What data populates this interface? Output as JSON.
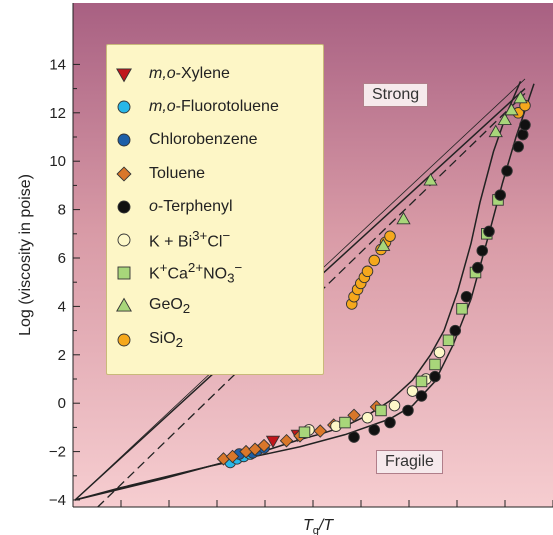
{
  "chart_data": {
    "type": "scatter",
    "title": "",
    "xlabel_main": "T",
    "xlabel_sub": "g",
    "xlabel_tail": "/T",
    "ylabel": "Log (viscosity in poise)",
    "x_range": [
      0,
      1
    ],
    "ylim": [
      -4,
      15.5
    ],
    "y_ticks": [
      "14",
      "12",
      "10",
      "8",
      "6",
      "4",
      "2",
      "0",
      "-2",
      "-4"
    ],
    "annotations": {
      "strong": "Strong",
      "fragile": "Fragile"
    },
    "legend": [
      {
        "key": "xylene",
        "pre": "",
        "it": "m,o",
        "post": "-Xylene",
        "color": "#c0161c",
        "marker": "triangle-down"
      },
      {
        "key": "fluorotoluene",
        "pre": "",
        "it": "m,o",
        "post": "-Fluorotoluene",
        "color": "#29b7e8",
        "marker": "circle"
      },
      {
        "key": "chlorobenzene",
        "pre": "",
        "it": "",
        "post": "Chlorobenzene",
        "color": "#1d5fa8",
        "marker": "circle"
      },
      {
        "key": "toluene",
        "pre": "",
        "it": "",
        "post": "Toluene",
        "color": "#d9772a",
        "marker": "diamond"
      },
      {
        "key": "terphenyl",
        "pre": "",
        "it": "o",
        "post": "-Terphenyl",
        "color": "#111111",
        "marker": "circle"
      },
      {
        "key": "kbicl",
        "pre": "K + Bi",
        "sup": "3+",
        "post": "Cl",
        "sup2": "−",
        "color": "#fdf8c8",
        "marker": "circle"
      },
      {
        "key": "kcano3",
        "pre": "K",
        "sup": "+",
        "post": "Ca",
        "sup2": "2+",
        "post2": "NO",
        "sub": "3",
        "sup3": "−",
        "color": "#a8d67a",
        "marker": "square"
      },
      {
        "key": "geo2",
        "pre": "GeO",
        "sub": "2",
        "color": "#a8d67a",
        "marker": "triangle-up"
      },
      {
        "key": "sio2",
        "pre": "SiO",
        "sub": "2",
        "color": "#f5a81c",
        "marker": "circle"
      }
    ],
    "series": [
      {
        "key": "sio2",
        "points": [
          [
            0.615,
            4.1
          ],
          [
            0.62,
            4.4
          ],
          [
            0.628,
            4.7
          ],
          [
            0.635,
            4.95
          ],
          [
            0.643,
            5.2
          ],
          [
            0.65,
            5.45
          ],
          [
            0.665,
            5.9
          ],
          [
            0.68,
            6.35
          ],
          [
            0.69,
            6.65
          ],
          [
            0.7,
            6.9
          ],
          [
            0.985,
            12.0
          ],
          [
            1.0,
            12.3
          ]
        ]
      },
      {
        "key": "geo2",
        "points": [
          [
            0.685,
            6.5
          ],
          [
            0.73,
            7.6
          ],
          [
            0.79,
            9.2
          ],
          [
            0.935,
            11.2
          ],
          [
            0.955,
            11.7
          ],
          [
            0.97,
            12.1
          ],
          [
            0.99,
            12.6
          ]
        ]
      },
      {
        "key": "xylene",
        "points": [
          [
            0.44,
            -1.55
          ],
          [
            0.495,
            -1.3
          ]
        ]
      },
      {
        "key": "fluorotoluene",
        "points": [
          [
            0.345,
            -2.45
          ],
          [
            0.36,
            -2.3
          ],
          [
            0.375,
            -2.2
          ],
          [
            0.39,
            -2.1
          ]
        ]
      },
      {
        "key": "chlorobenzene",
        "points": [
          [
            0.365,
            -2.1
          ],
          [
            0.395,
            -2.05
          ],
          [
            0.405,
            -1.95
          ],
          [
            0.42,
            -1.85
          ]
        ]
      },
      {
        "key": "toluene",
        "points": [
          [
            0.33,
            -2.3
          ],
          [
            0.35,
            -2.2
          ],
          [
            0.38,
            -2.0
          ],
          [
            0.4,
            -1.9
          ],
          [
            0.42,
            -1.75
          ],
          [
            0.47,
            -1.55
          ],
          [
            0.5,
            -1.35
          ],
          [
            0.545,
            -1.15
          ],
          [
            0.575,
            -0.9
          ],
          [
            0.62,
            -0.5
          ],
          [
            0.67,
            -0.15
          ]
        ]
      },
      {
        "key": "kbicl",
        "points": [
          [
            0.52,
            -1.1
          ],
          [
            0.58,
            -0.95
          ],
          [
            0.65,
            -0.6
          ],
          [
            0.71,
            -0.1
          ],
          [
            0.75,
            0.5
          ],
          [
            0.78,
            1.0
          ],
          [
            0.81,
            2.1
          ]
        ]
      },
      {
        "key": "kcano3",
        "points": [
          [
            0.51,
            -1.2
          ],
          [
            0.6,
            -0.8
          ],
          [
            0.68,
            -0.3
          ],
          [
            0.77,
            0.9
          ],
          [
            0.8,
            1.6
          ],
          [
            0.83,
            2.6
          ],
          [
            0.86,
            3.9
          ],
          [
            0.89,
            5.4
          ],
          [
            0.915,
            7.0
          ],
          [
            0.94,
            8.4
          ]
        ]
      },
      {
        "key": "terphenyl",
        "points": [
          [
            0.62,
            -1.4
          ],
          [
            0.665,
            -1.1
          ],
          [
            0.7,
            -0.8
          ],
          [
            0.74,
            -0.3
          ],
          [
            0.77,
            0.3
          ],
          [
            0.8,
            1.1
          ],
          [
            0.845,
            3.0
          ],
          [
            0.87,
            4.4
          ],
          [
            0.895,
            5.6
          ],
          [
            0.905,
            6.3
          ],
          [
            0.92,
            7.1
          ],
          [
            0.945,
            8.6
          ],
          [
            0.96,
            9.6
          ],
          [
            0.985,
            10.6
          ],
          [
            0.995,
            11.1
          ],
          [
            1.0,
            11.5
          ]
        ]
      }
    ],
    "lines": [
      {
        "style": "thin",
        "points": [
          [
            0,
            -4
          ],
          [
            1,
            13.4
          ]
        ]
      },
      {
        "style": "solid",
        "points": [
          [
            0,
            -4
          ],
          [
            1,
            13.0
          ]
        ]
      },
      {
        "style": "dashed",
        "points": [
          [
            0.05,
            -4.3
          ],
          [
            1,
            12.8
          ]
        ]
      },
      {
        "style": "solid",
        "curve": true,
        "points": [
          [
            0,
            -4
          ],
          [
            0.1,
            -3.5
          ],
          [
            0.2,
            -3.05
          ],
          [
            0.3,
            -2.6
          ],
          [
            0.4,
            -2.2
          ],
          [
            0.5,
            -1.8
          ],
          [
            0.6,
            -1.3
          ],
          [
            0.7,
            -0.65
          ],
          [
            0.75,
            -0.1
          ],
          [
            0.8,
            0.9
          ],
          [
            0.84,
            2.4
          ],
          [
            0.88,
            4.3
          ],
          [
            0.92,
            7.0
          ],
          [
            0.95,
            9.1
          ],
          [
            0.98,
            11.0
          ],
          [
            1.0,
            12.1
          ],
          [
            1.02,
            13.2
          ]
        ]
      },
      {
        "style": "solid",
        "curve": true,
        "points": [
          [
            0,
            -4
          ],
          [
            0.1,
            -3.55
          ],
          [
            0.2,
            -3.1
          ],
          [
            0.3,
            -2.6
          ],
          [
            0.4,
            -2.1
          ],
          [
            0.45,
            -1.8
          ],
          [
            0.5,
            -1.5
          ],
          [
            0.55,
            -1.25
          ],
          [
            0.6,
            -0.95
          ],
          [
            0.65,
            -0.5
          ],
          [
            0.7,
            0.1
          ],
          [
            0.75,
            0.95
          ],
          [
            0.79,
            2.0
          ],
          [
            0.82,
            3.0
          ],
          [
            0.85,
            4.6
          ],
          [
            0.88,
            6.6
          ],
          [
            0.9,
            8.3
          ],
          [
            0.93,
            10.4
          ],
          [
            0.96,
            12.0
          ],
          [
            0.99,
            13.3
          ]
        ]
      }
    ]
  }
}
